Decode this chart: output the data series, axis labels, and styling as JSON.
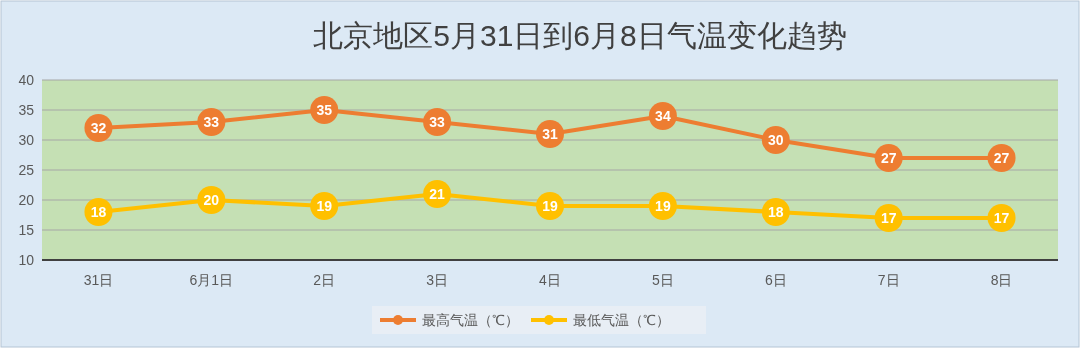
{
  "chart_data": {
    "type": "line",
    "title": "北京地区5月31日到6月8日气温变化趋势",
    "categories": [
      "31日",
      "6月1日",
      "2日",
      "3日",
      "4日",
      "5日",
      "6日",
      "7日",
      "8日"
    ],
    "series": [
      {
        "name": "最高气温（℃）",
        "color": "#ed7d31",
        "values": [
          32,
          33,
          35,
          33,
          31,
          34,
          30,
          27,
          27
        ]
      },
      {
        "name": "最低气温（℃）",
        "color": "#ffc000",
        "values": [
          18,
          20,
          19,
          21,
          19,
          19,
          18,
          17,
          17
        ]
      }
    ],
    "ylim": [
      10,
      40
    ],
    "yticks": [
      10,
      15,
      20,
      25,
      30,
      35,
      40
    ],
    "grid": "y",
    "legend": "bottom",
    "marker": "circle",
    "line_style": "solid",
    "data_labels": true
  }
}
